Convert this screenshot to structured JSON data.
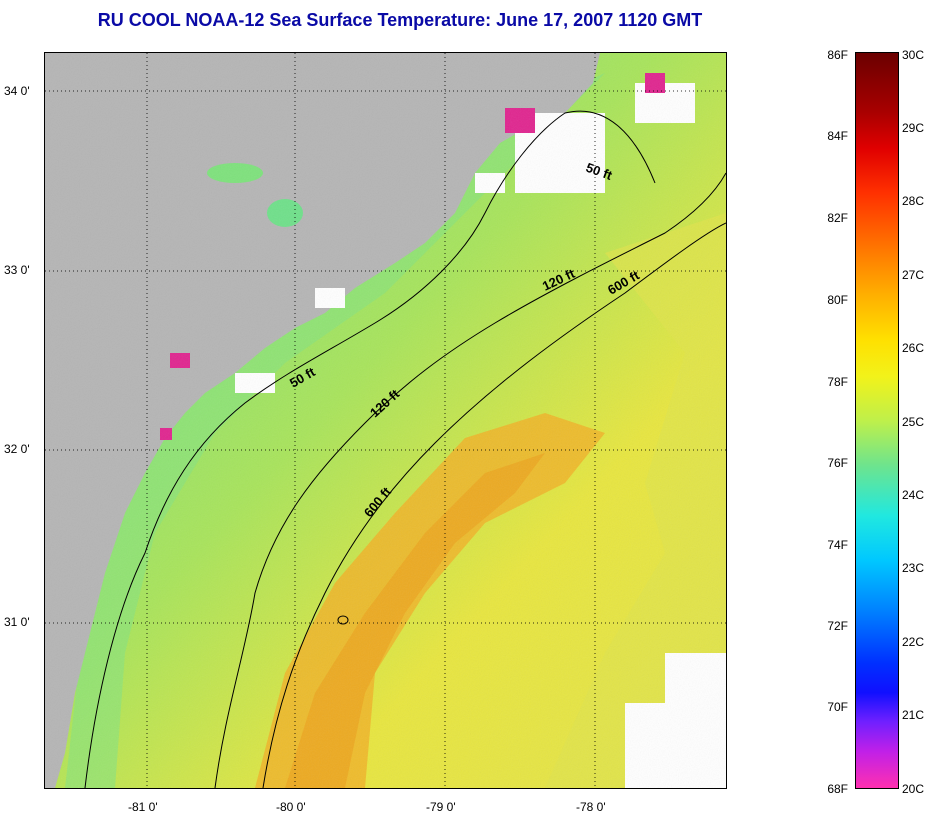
{
  "title": "RU COOL  NOAA-12  Sea Surface Temperature:  June 17, 2007 1120 GMT",
  "map": {
    "lat_labels": [
      "34 0'",
      "33 0'",
      "32 0'",
      "31 0'"
    ],
    "lon_labels": [
      "-81 0'",
      "-80 0'",
      "-79 0'",
      "-78 0'"
    ],
    "contours": [
      {
        "label": "50 ft",
        "lines": [
          "50 ft",
          "50 ft"
        ]
      },
      {
        "label": "120 ft",
        "lines": [
          "120 ft",
          "120 ft"
        ]
      },
      {
        "label": "600 ft",
        "lines": [
          "600 ft",
          "600 ft"
        ]
      }
    ],
    "contour_label_1": "50 ft",
    "contour_label_2": "50 ft",
    "contour_label_3": "120 ft",
    "contour_label_4": "120 ft",
    "contour_label_5": "600 ft",
    "contour_label_6": "600 ft",
    "colors": {
      "land": "#b5b5b5",
      "cloud": "#ffffff",
      "sea_green": "#7fe27a",
      "sea_yellow": "#e6e93a",
      "sea_orange": "#f1b21a"
    }
  },
  "colorbar": {
    "f_labels": [
      "86F",
      "84F",
      "82F",
      "80F",
      "78F",
      "76F",
      "74F",
      "72F",
      "70F",
      "68F"
    ],
    "c_labels": [
      "30C",
      "29C",
      "28C",
      "27C",
      "26C",
      "25C",
      "24C",
      "23C",
      "22C",
      "21C",
      "20C"
    ]
  }
}
